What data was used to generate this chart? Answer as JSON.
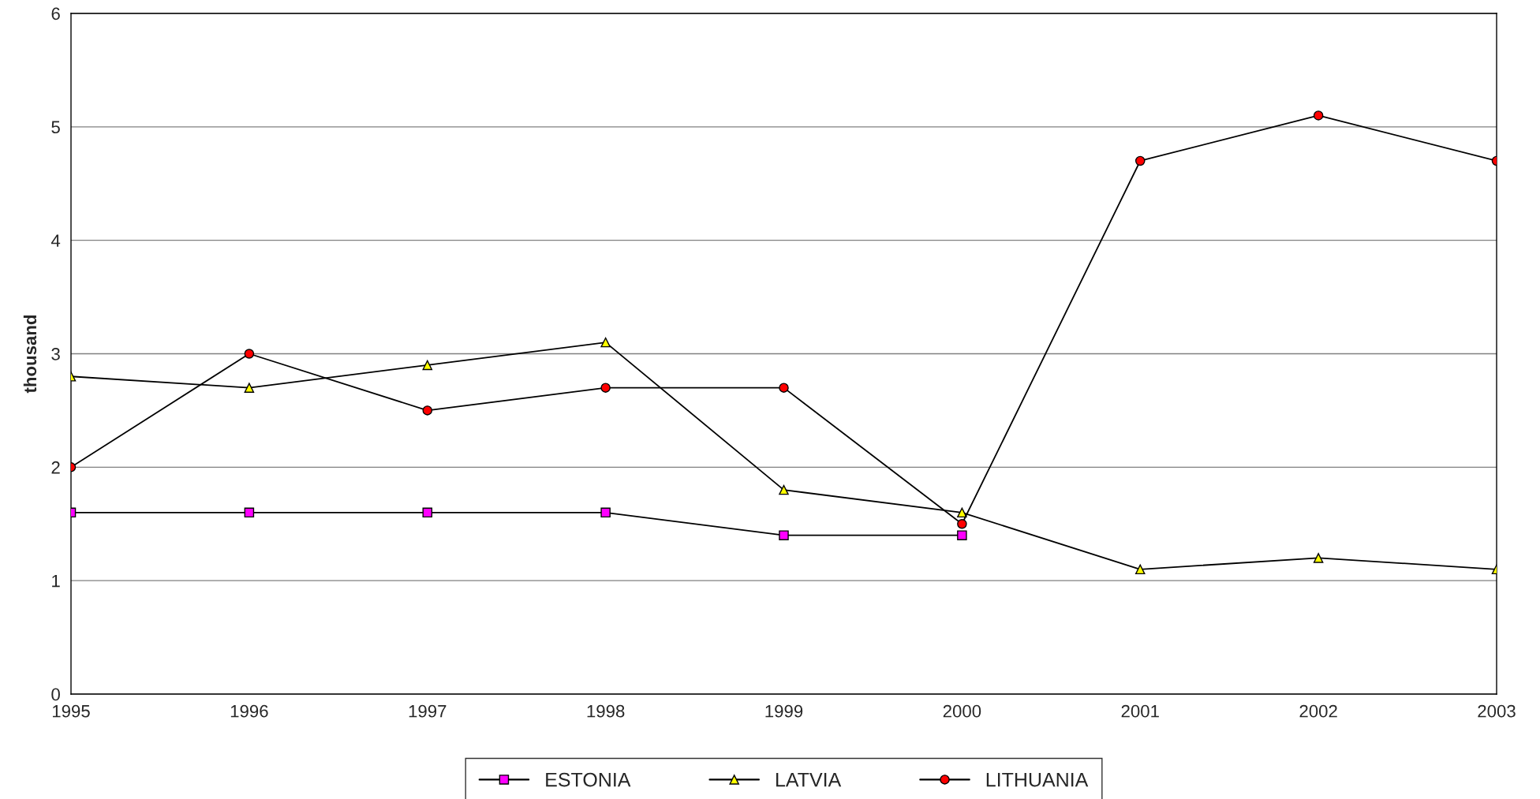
{
  "chart_data": {
    "type": "line",
    "ylabel": "thousand",
    "x": [
      1995,
      1996,
      1997,
      1998,
      1999,
      2000,
      2001,
      2002,
      2003
    ],
    "xlim": [
      1995,
      2003
    ],
    "xticks": [
      1995,
      1996,
      1997,
      1998,
      1999,
      2000,
      2001,
      2002,
      2003
    ],
    "ylim": [
      0,
      6
    ],
    "yticks": [
      0,
      1,
      2,
      3,
      4,
      5,
      6
    ],
    "grid": "y",
    "legend": "bottom",
    "line_style": "solid",
    "series": [
      {
        "name": "ESTONIA",
        "color": "#ff00ff",
        "marker": "square",
        "values": [
          1.6,
          1.6,
          1.6,
          1.6,
          1.4,
          1.4,
          null,
          null,
          null
        ]
      },
      {
        "name": "LATVIA",
        "color": "#ffff00",
        "marker": "triangle",
        "values": [
          2.8,
          2.7,
          2.9,
          3.1,
          1.8,
          1.6,
          1.1,
          1.2,
          1.1
        ]
      },
      {
        "name": "LITHUANIA",
        "color": "#ff0000",
        "marker": "circle",
        "values": [
          2.0,
          3.0,
          2.5,
          2.7,
          2.7,
          1.5,
          4.7,
          5.1,
          4.7
        ]
      }
    ]
  }
}
